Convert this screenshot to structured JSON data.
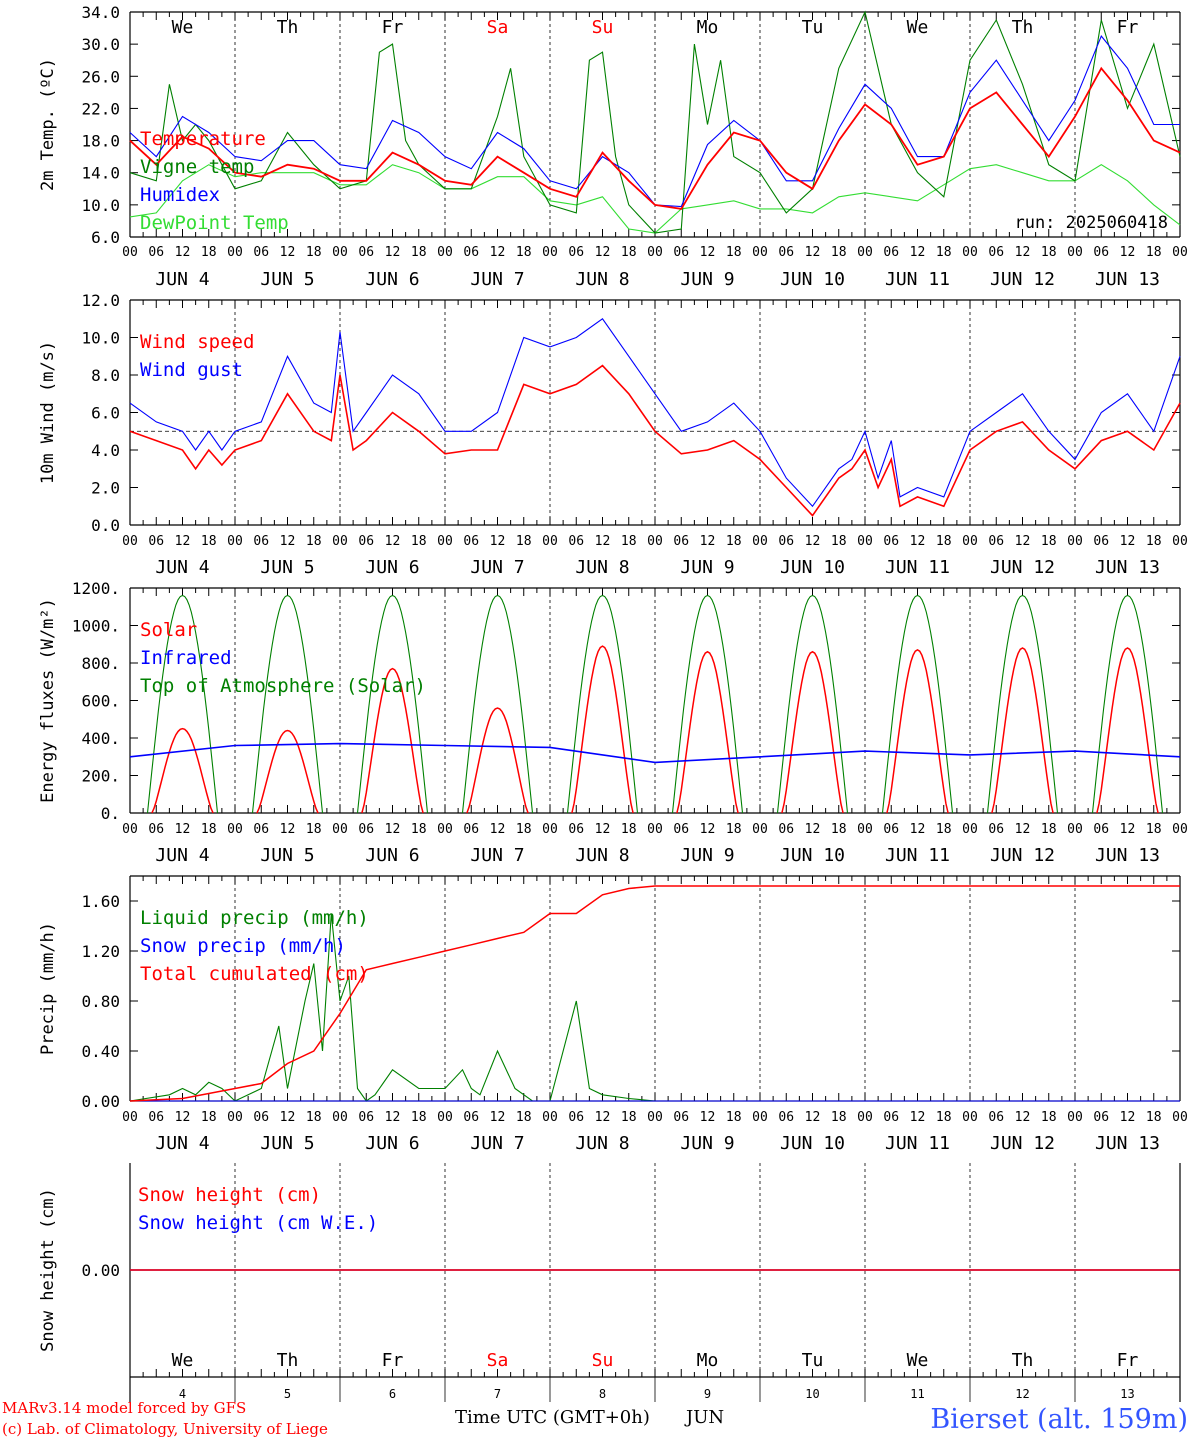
{
  "colors": {
    "red": "#ff0000",
    "green": "#008000",
    "blue": "#0000ff",
    "lime": "#33dd33",
    "black": "#000000",
    "title_blue": "#3355ff"
  },
  "days": [
    "We",
    "Th",
    "Fr",
    "Sa",
    "Su",
    "Mo",
    "Tu",
    "We",
    "Th",
    "Fr"
  ],
  "weekend_days": [
    3,
    4
  ],
  "date_labels": [
    "JUN  4",
    "JUN  5",
    "JUN  6",
    "JUN  7",
    "JUN  8",
    "JUN  9",
    "JUN 10",
    "JUN 11",
    "JUN 12",
    "JUN 13"
  ],
  "bottom_day_numbers": [
    "4",
    "5",
    "6",
    "7",
    "8",
    "9",
    "10",
    "11",
    "12",
    "13"
  ],
  "hour_ticks": [
    "00",
    "06",
    "12",
    "18"
  ],
  "hour_end": "00",
  "footer": {
    "line1": "MARv3.14 model forced by GFS",
    "line2": "(c) Lab. of Climatology, University of Liege",
    "xlabel": "Time UTC (GMT+0h)",
    "month": "JUN",
    "station": "Bierset (alt. 159m)"
  },
  "chart_data": [
    {
      "type": "line",
      "ylabel": "2m Temp. (ºC)",
      "ylim": [
        6,
        34
      ],
      "yticks": [
        "6.0",
        "10.0",
        "14.0",
        "18.0",
        "22.0",
        "26.0",
        "30.0",
        "34.0"
      ],
      "run_label": "run: 2025060418",
      "x_unit": "hours since 2025-06-04 00 UTC",
      "series": [
        {
          "name": "Temperature",
          "color": "red",
          "x": [
            0,
            6,
            12,
            18,
            24,
            30,
            36,
            42,
            48,
            54,
            60,
            66,
            72,
            78,
            84,
            90,
            96,
            102,
            108,
            114,
            120,
            126,
            132,
            138,
            144,
            150,
            156,
            162,
            168,
            174,
            180,
            186,
            192,
            198,
            204,
            210,
            216,
            222,
            228,
            234,
            240
          ],
          "y": [
            18,
            15,
            18.5,
            17,
            14,
            13.5,
            15,
            14.5,
            13,
            13,
            16.5,
            15,
            13,
            12.5,
            16,
            14,
            12,
            11,
            16.5,
            13,
            10,
            9.5,
            15,
            19,
            18,
            14,
            12,
            18,
            22.5,
            20,
            15,
            16,
            22,
            24,
            20,
            16,
            21,
            27,
            23,
            18,
            16.5
          ]
        },
        {
          "name": "Vigne temp",
          "color": "green",
          "x": [
            0,
            6,
            9,
            12,
            15,
            18,
            24,
            30,
            36,
            42,
            48,
            54,
            57,
            60,
            63,
            66,
            72,
            78,
            84,
            87,
            90,
            96,
            102,
            105,
            108,
            111,
            114,
            120,
            126,
            129,
            132,
            135,
            138,
            144,
            150,
            156,
            162,
            168,
            174,
            180,
            186,
            192,
            198,
            204,
            210,
            216,
            222,
            228,
            234,
            240
          ],
          "y": [
            14,
            13,
            25,
            18,
            20,
            18,
            12,
            13,
            19,
            15,
            12,
            13,
            29,
            30,
            18,
            15,
            12,
            12,
            21,
            27,
            16,
            10,
            9,
            28,
            29,
            16,
            10,
            6.5,
            7,
            30,
            20,
            28,
            16,
            14,
            9,
            12,
            27,
            34,
            20,
            14,
            11,
            28,
            33,
            25,
            15,
            13,
            33,
            22,
            30,
            16
          ]
        },
        {
          "name": "Humidex",
          "color": "blue",
          "x": [
            0,
            6,
            12,
            18,
            24,
            30,
            36,
            42,
            48,
            54,
            60,
            66,
            72,
            78,
            84,
            90,
            96,
            102,
            108,
            114,
            120,
            126,
            132,
            138,
            144,
            150,
            156,
            162,
            168,
            174,
            180,
            186,
            192,
            198,
            204,
            210,
            216,
            222,
            228,
            234,
            240
          ],
          "y": [
            19,
            16,
            21,
            19,
            16,
            15.5,
            18,
            18,
            15,
            14.5,
            20.5,
            19,
            16,
            14.5,
            19,
            17,
            13,
            12,
            16,
            14,
            10,
            9.8,
            17.5,
            20.5,
            18,
            13,
            13,
            19.5,
            25,
            22,
            16,
            16,
            24,
            28,
            23,
            18,
            23,
            31,
            27,
            20,
            20
          ]
        },
        {
          "name": "DewPoint Temp",
          "color": "lime",
          "x": [
            0,
            6,
            12,
            18,
            24,
            30,
            36,
            42,
            48,
            54,
            60,
            66,
            72,
            78,
            84,
            90,
            96,
            102,
            108,
            114,
            120,
            126,
            132,
            138,
            144,
            150,
            156,
            162,
            168,
            174,
            180,
            186,
            192,
            198,
            204,
            210,
            216,
            222,
            228,
            234,
            240
          ],
          "y": [
            8.5,
            9,
            13,
            15,
            13.5,
            14,
            14,
            14,
            12.5,
            12.5,
            15,
            14,
            12,
            12,
            13.5,
            13.5,
            10.5,
            10,
            11,
            7,
            6.5,
            9.5,
            10,
            10.5,
            9.5,
            9.5,
            9,
            11,
            11.5,
            11,
            10.5,
            12.5,
            14.5,
            15,
            14,
            13,
            13,
            15,
            13,
            10,
            7.5
          ]
        }
      ],
      "legend_placement": "top-left"
    },
    {
      "type": "line",
      "ylabel": "10m Wind (m/s)",
      "ylim": [
        0,
        12
      ],
      "yticks": [
        "0.0",
        "2.0",
        "4.0",
        "6.0",
        "8.0",
        "10.0",
        "12.0"
      ],
      "reference_line": 5,
      "series": [
        {
          "name": "Wind speed",
          "color": "red",
          "x": [
            0,
            6,
            12,
            15,
            18,
            21,
            24,
            30,
            36,
            42,
            46,
            48,
            51,
            54,
            60,
            66,
            72,
            78,
            84,
            90,
            96,
            102,
            108,
            114,
            120,
            126,
            132,
            138,
            144,
            150,
            156,
            162,
            165,
            168,
            171,
            174,
            176,
            180,
            186,
            192,
            198,
            204,
            210,
            216,
            222,
            228,
            234,
            240
          ],
          "y": [
            5,
            4.5,
            4,
            3,
            4,
            3.2,
            4,
            4.5,
            7,
            5,
            4.5,
            8,
            4,
            4.5,
            6,
            5,
            3.8,
            4,
            4,
            7.5,
            7,
            7.5,
            8.5,
            7,
            5,
            3.8,
            4,
            4.5,
            3.5,
            2,
            0.5,
            2.5,
            3,
            4,
            2,
            3.5,
            1,
            1.5,
            1,
            4,
            5,
            5.5,
            4,
            3,
            4.5,
            5,
            4,
            6.5
          ]
        },
        {
          "name": "Wind gust",
          "color": "blue",
          "x": [
            0,
            6,
            12,
            15,
            18,
            21,
            24,
            30,
            36,
            42,
            46,
            48,
            51,
            54,
            60,
            66,
            72,
            78,
            84,
            90,
            96,
            102,
            108,
            114,
            120,
            126,
            132,
            138,
            144,
            150,
            156,
            162,
            165,
            168,
            171,
            174,
            176,
            180,
            186,
            192,
            198,
            204,
            210,
            216,
            222,
            228,
            234,
            240
          ],
          "y": [
            6.5,
            5.5,
            5,
            4,
            5,
            4,
            5,
            5.5,
            9,
            6.5,
            6,
            10.3,
            5,
            6,
            8,
            7,
            5,
            5,
            6,
            10,
            9.5,
            10,
            11,
            9,
            7,
            5,
            5.5,
            6.5,
            5,
            2.5,
            1,
            3,
            3.5,
            5,
            2.5,
            4.5,
            1.5,
            2,
            1.5,
            5,
            6,
            7,
            5,
            3.5,
            6,
            7,
            5,
            9
          ]
        }
      ],
      "legend_placement": "top-left"
    },
    {
      "type": "line",
      "ylabel": "Energy fluxes (W/m²)",
      "ylim": [
        0,
        1200
      ],
      "yticks": [
        "0.",
        "200.",
        "400.",
        "600.",
        "800.",
        "1000.",
        "1200."
      ],
      "series": [
        {
          "name": "Solar",
          "color": "red",
          "daily_peaks": [
            450,
            440,
            770,
            560,
            890,
            860,
            860,
            870,
            880,
            880
          ]
        },
        {
          "name": "Infrared",
          "color": "blue",
          "x": [
            0,
            24,
            48,
            72,
            96,
            120,
            144,
            168,
            192,
            216,
            240
          ],
          "y": [
            300,
            360,
            370,
            360,
            350,
            270,
            300,
            330,
            310,
            330,
            300
          ]
        },
        {
          "name": "Top of Atmosphere (Solar)",
          "color": "green",
          "daily_peak": 1160,
          "day_start_hour": 4,
          "day_end_hour": 20
        }
      ],
      "legend_placement": "top-left"
    },
    {
      "type": "line",
      "ylabel": "Precip (mm/h)",
      "ylim": [
        0,
        1.8
      ],
      "yticks": [
        "0.00",
        "0.40",
        "0.80",
        "1.20",
        "1.60"
      ],
      "series": [
        {
          "name": "Liquid precip (mm/h)",
          "color": "green",
          "x": [
            0,
            9,
            12,
            15,
            18,
            21,
            24,
            30,
            34,
            36,
            40,
            42,
            44,
            46,
            48,
            50,
            52,
            54,
            56,
            60,
            66,
            72,
            76,
            78,
            80,
            84,
            88,
            92,
            96,
            102,
            105,
            108,
            114,
            120,
            240
          ],
          "y": [
            0,
            0.05,
            0.1,
            0.05,
            0.15,
            0.1,
            0,
            0.1,
            0.6,
            0.1,
            0.8,
            1.1,
            0.4,
            1.5,
            0.8,
            1,
            0.1,
            0,
            0.05,
            0.25,
            0.1,
            0.1,
            0.25,
            0.1,
            0.05,
            0.4,
            0.1,
            0,
            0,
            0.8,
            0.1,
            0.05,
            0.02,
            0,
            0
          ]
        },
        {
          "name": "Snow precip (mm/h)",
          "color": "blue",
          "x": [
            0,
            240
          ],
          "y": [
            0,
            0
          ]
        },
        {
          "name": "Total cumulated (cm)",
          "color": "red",
          "x": [
            0,
            12,
            24,
            30,
            36,
            42,
            48,
            54,
            60,
            66,
            72,
            78,
            84,
            90,
            96,
            102,
            108,
            114,
            120,
            126,
            240
          ],
          "y": [
            0,
            0.02,
            0.1,
            0.14,
            0.3,
            0.4,
            0.7,
            1.05,
            1.1,
            1.15,
            1.2,
            1.25,
            1.3,
            1.35,
            1.5,
            1.5,
            1.65,
            1.7,
            1.72,
            1.72,
            1.72
          ]
        }
      ],
      "legend_placement": "top-left"
    },
    {
      "type": "line",
      "ylabel": "Snow height (cm)",
      "ylim": [
        -1,
        1
      ],
      "yticks": [
        "0.00"
      ],
      "series": [
        {
          "name": "Snow height (cm)",
          "color": "red",
          "x": [
            0,
            240
          ],
          "y": [
            0,
            0
          ]
        },
        {
          "name": "Snow height (cm W.E.)",
          "color": "blue",
          "x": [
            0,
            240
          ],
          "y": [
            0,
            0
          ]
        }
      ],
      "legend_placement": "top-left"
    }
  ]
}
